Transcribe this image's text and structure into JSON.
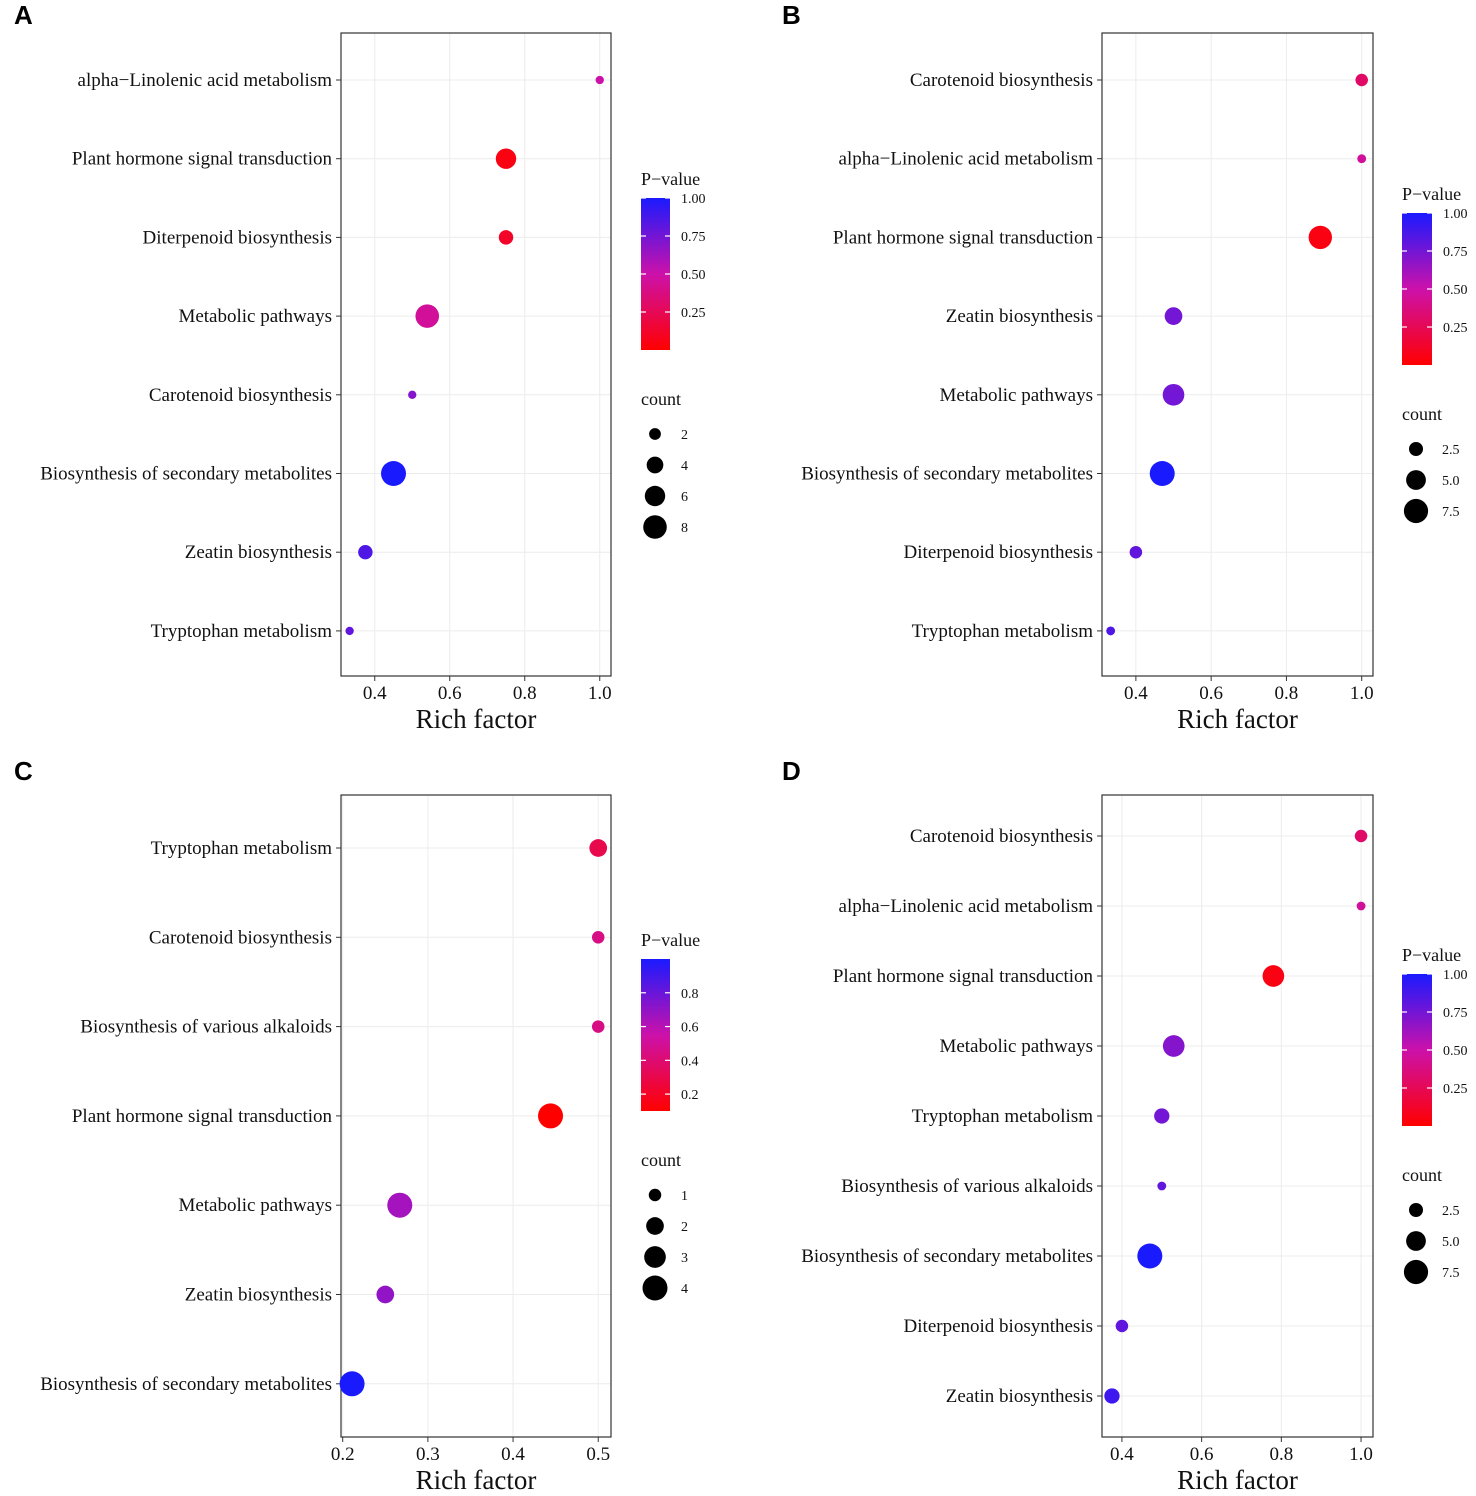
{
  "chart_data": [
    {
      "panel": "A",
      "type": "scatter",
      "xlabel": "Rich factor",
      "xlim": [
        0.31,
        1.03
      ],
      "xticks": [
        0.4,
        0.6,
        0.8,
        1.0
      ],
      "xtick_labels": [
        "0.4",
        "0.6",
        "0.8",
        "1.0"
      ],
      "categories": [
        "alpha−Linolenic acid metabolism",
        "Plant hormone signal transduction",
        "Diterpenoid biosynthesis",
        "Metabolic pathways",
        "Carotenoid biosynthesis",
        "Biosynthesis of secondary metabolites",
        "Zeatin biosynthesis",
        "Tryptophan metabolism"
      ],
      "rich_factor": [
        1.0,
        0.75,
        0.75,
        0.54,
        0.5,
        0.45,
        0.375,
        0.333
      ],
      "p_value": [
        0.5,
        0.05,
        0.12,
        0.45,
        0.7,
        1.0,
        0.85,
        0.8
      ],
      "count": [
        1,
        6,
        3,
        8,
        1,
        9,
        3,
        1
      ],
      "color_legend": {
        "title": "P−value",
        "min": 0.0,
        "max": 1.0,
        "ticks": [
          0.25,
          0.5,
          0.75,
          1.0
        ],
        "tick_labels": [
          "0.25",
          "0.50",
          "0.75",
          "1.00"
        ]
      },
      "size_legend": {
        "title": "count",
        "values": [
          2,
          4,
          6,
          8
        ],
        "labels": [
          "2",
          "4",
          "6",
          "8"
        ],
        "max_count": 9
      }
    },
    {
      "panel": "B",
      "type": "scatter",
      "xlabel": "Rich factor",
      "xlim": [
        0.31,
        1.03
      ],
      "xticks": [
        0.4,
        0.6,
        0.8,
        1.0
      ],
      "xtick_labels": [
        "0.4",
        "0.6",
        "0.8",
        "1.0"
      ],
      "categories": [
        "Carotenoid biosynthesis",
        "alpha−Linolenic acid metabolism",
        "Plant hormone signal transduction",
        "Zeatin biosynthesis",
        "Metabolic pathways",
        "Biosynthesis of secondary metabolites",
        "Diterpenoid biosynthesis",
        "Tryptophan metabolism"
      ],
      "rich_factor": [
        1.0,
        1.0,
        0.89,
        0.5,
        0.5,
        0.47,
        0.4,
        0.333
      ],
      "p_value": [
        0.3,
        0.45,
        0.05,
        0.75,
        0.75,
        1.0,
        0.8,
        0.85
      ],
      "count": [
        2,
        1,
        7,
        4,
        6,
        8,
        2,
        1
      ],
      "color_legend": {
        "title": "P−value",
        "min": 0.0,
        "max": 1.0,
        "ticks": [
          0.25,
          0.5,
          0.75,
          1.0
        ],
        "tick_labels": [
          "0.25",
          "0.50",
          "0.75",
          "1.00"
        ]
      },
      "size_legend": {
        "title": "count",
        "values": [
          2.5,
          5.0,
          7.5
        ],
        "labels": [
          "2.5",
          "5.0",
          "7.5"
        ],
        "max_count": 8
      }
    },
    {
      "panel": "C",
      "type": "scatter",
      "xlabel": "Rich factor",
      "xlim": [
        0.198,
        0.515
      ],
      "xticks": [
        0.2,
        0.3,
        0.4,
        0.5
      ],
      "xtick_labels": [
        "0.2",
        "0.3",
        "0.4",
        "0.5"
      ],
      "categories": [
        "Tryptophan metabolism",
        "Carotenoid biosynthesis",
        "Biosynthesis of various alkaloids",
        "Plant hormone signal transduction",
        "Metabolic pathways",
        "Zeatin biosynthesis",
        "Biosynthesis of secondary metabolites"
      ],
      "rich_factor": [
        0.5,
        0.5,
        0.5,
        0.444,
        0.267,
        0.25,
        0.211
      ],
      "p_value": [
        0.3,
        0.45,
        0.45,
        0.1,
        0.65,
        0.7,
        1.0
      ],
      "count": [
        2,
        1,
        1,
        4,
        4,
        2,
        4
      ],
      "color_legend": {
        "title": "P−value",
        "min": 0.1,
        "max": 1.0,
        "ticks": [
          0.2,
          0.4,
          0.6,
          0.8
        ],
        "tick_labels": [
          "0.2",
          "0.4",
          "0.6",
          "0.8"
        ]
      },
      "size_legend": {
        "title": "count",
        "values": [
          1,
          2,
          3,
          4
        ],
        "labels": [
          "1",
          "2",
          "3",
          "4"
        ],
        "max_count": 4
      }
    },
    {
      "panel": "D",
      "type": "scatter",
      "xlabel": "Rich factor",
      "xlim": [
        0.35,
        1.03
      ],
      "xticks": [
        0.4,
        0.6,
        0.8,
        1.0
      ],
      "xtick_labels": [
        "0.4",
        "0.6",
        "0.8",
        "1.0"
      ],
      "categories": [
        "Carotenoid biosynthesis",
        "alpha−Linolenic acid metabolism",
        "Plant hormone signal transduction",
        "Metabolic pathways",
        "Tryptophan metabolism",
        "Biosynthesis of various alkaloids",
        "Biosynthesis of secondary metabolites",
        "Diterpenoid biosynthesis",
        "Zeatin biosynthesis"
      ],
      "rich_factor": [
        1.0,
        1.0,
        0.78,
        0.53,
        0.5,
        0.5,
        0.47,
        0.4,
        0.375
      ],
      "p_value": [
        0.3,
        0.45,
        0.05,
        0.7,
        0.75,
        0.8,
        1.0,
        0.8,
        0.9
      ],
      "count": [
        2,
        1,
        6,
        6,
        3,
        1,
        8,
        2,
        3
      ],
      "color_legend": {
        "title": "P−value",
        "min": 0.0,
        "max": 1.0,
        "ticks": [
          0.25,
          0.5,
          0.75,
          1.0
        ],
        "tick_labels": [
          "0.25",
          "0.50",
          "0.75",
          "1.00"
        ]
      },
      "size_legend": {
        "title": "count",
        "values": [
          2.5,
          5.0,
          7.5
        ],
        "labels": [
          "2.5",
          "5.0",
          "7.5"
        ],
        "max_count": 8
      }
    }
  ]
}
